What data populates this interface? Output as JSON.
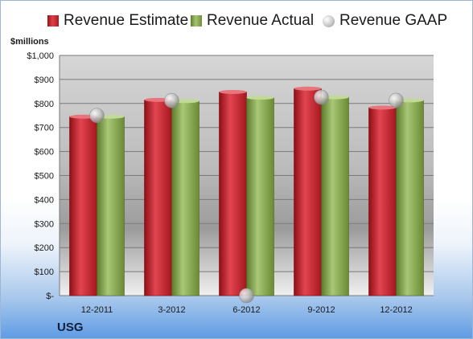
{
  "legend": {
    "estimate": "Revenue Estimate",
    "actual": "Revenue Actual",
    "gaap": "Revenue GAAP"
  },
  "units": "$millions",
  "company": "USG",
  "colors": {
    "estimate": "#c0202a",
    "actual": "#8aab55",
    "gaap": "#bdbdbd"
  },
  "chart_data": {
    "type": "bar",
    "categories": [
      "12-2011",
      "3-2012",
      "6-2012",
      "9-2012",
      "12-2012"
    ],
    "series": [
      {
        "name": "Revenue Estimate",
        "values": [
          745,
          815,
          848,
          862,
          783
        ]
      },
      {
        "name": "Revenue Actual",
        "values": [
          745,
          810,
          824,
          826,
          813
        ]
      },
      {
        "name": "Revenue GAAP",
        "values": [
          750,
          812,
          0,
          826,
          813
        ]
      }
    ],
    "ylabel": "$millions",
    "ylim": [
      0,
      1000
    ],
    "yticks": [
      0,
      100,
      200,
      300,
      400,
      500,
      600,
      700,
      800,
      900,
      1000
    ],
    "ytick_labels": [
      "$-",
      "$100",
      "$200",
      "$300",
      "$400",
      "$500",
      "$600",
      "$700",
      "$800",
      "$900",
      "$1,000"
    ],
    "grid": true,
    "legend_position": "top"
  }
}
